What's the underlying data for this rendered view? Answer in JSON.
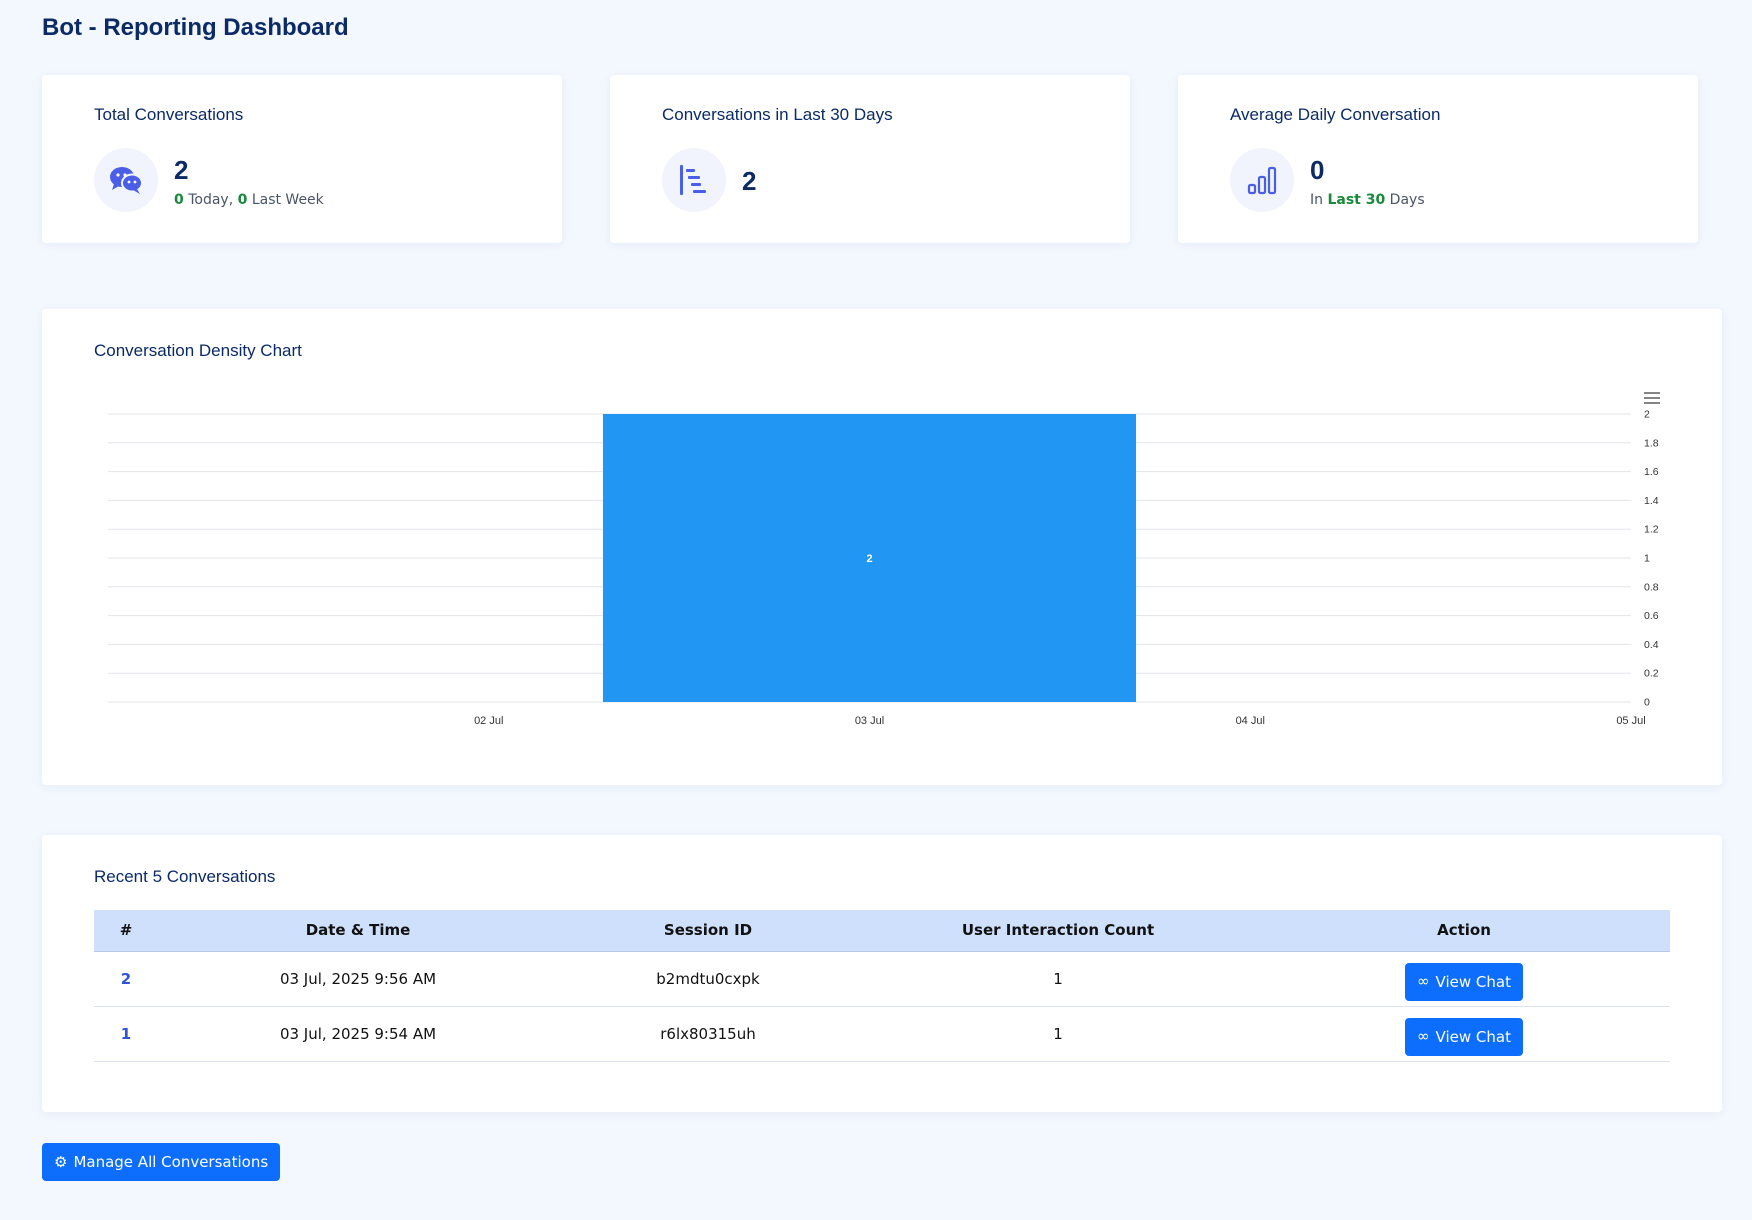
{
  "page": {
    "title": "Bot - Reporting Dashboard"
  },
  "stats": {
    "total": {
      "title": "Total Conversations",
      "icon": "wechat-chat-icon",
      "value": "2",
      "today_count": "0",
      "today_label": "Today,",
      "week_count": "0",
      "week_label": "Last Week"
    },
    "last30": {
      "title": "Conversations in Last 30 Days",
      "icon": "bar-chart-horizontal-icon",
      "value": "2"
    },
    "average": {
      "title": "Average Daily Conversation",
      "icon": "signal-bars-icon",
      "value": "0",
      "prefix": "In",
      "highlight": "Last 30",
      "suffix": "Days"
    }
  },
  "chart_card": {
    "title": "Conversation Density Chart",
    "menu_icon": "hamburger-menu-icon"
  },
  "chart_data": {
    "type": "bar",
    "title": "Conversation Density Chart",
    "x_ticks": [
      "02 Jul",
      "03 Jul",
      "04 Jul",
      "05 Jul"
    ],
    "categories": [
      "03 Jul"
    ],
    "values": [
      2
    ],
    "data_labels": [
      "2"
    ],
    "ylim": [
      0,
      2
    ],
    "y_ticks": [
      "0",
      "0.2",
      "0.4",
      "0.6",
      "0.8",
      "1",
      "1.2",
      "1.4",
      "1.6",
      "1.8",
      "2"
    ],
    "y_axis_side": "right",
    "grid": true,
    "color": "#2196f3"
  },
  "table": {
    "title": "Recent 5 Conversations",
    "headers": [
      "#",
      "Date & Time",
      "Session ID",
      "User Interaction Count",
      "Action"
    ],
    "rows": [
      {
        "index": "2",
        "datetime": "03 Jul, 2025 9:56 AM",
        "session": "b2mdtu0cxpk",
        "count": "1",
        "action": "View Chat"
      },
      {
        "index": "1",
        "datetime": "03 Jul, 2025 9:54 AM",
        "session": "r6lx80315uh",
        "count": "1",
        "action": "View Chat"
      }
    ],
    "action_icon": "infinity-link-icon"
  },
  "footer": {
    "manage_label": "Manage All Conversations",
    "manage_icon": "gear-icon"
  },
  "colors": {
    "accent": "#0d6efd",
    "bar": "#2196f3",
    "highlight_green": "#1a8a3a",
    "title_navy": "#0b2a66"
  }
}
